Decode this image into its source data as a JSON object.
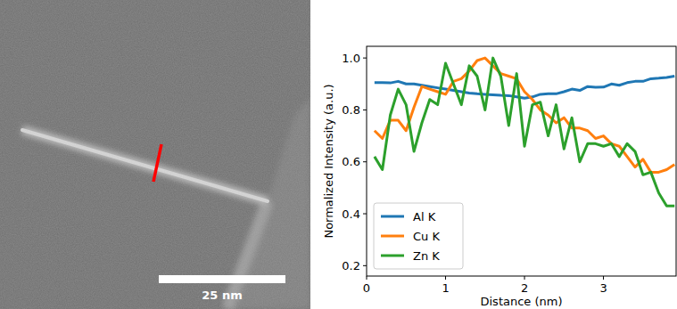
{
  "chart_data": {
    "type": "line",
    "x_label": "Distance (nm)",
    "y_label": "Normalized Intensity (a.u.)",
    "x": [
      0.1,
      0.2,
      0.3,
      0.4,
      0.5,
      0.6,
      0.7,
      0.8,
      0.9,
      1.0,
      1.1,
      1.2,
      1.3,
      1.4,
      1.5,
      1.6,
      1.7,
      1.8,
      1.9,
      2.0,
      2.1,
      2.2,
      2.3,
      2.4,
      2.5,
      2.6,
      2.7,
      2.8,
      2.9,
      3.0,
      3.1,
      3.2,
      3.3,
      3.4,
      3.5,
      3.6,
      3.7,
      3.8,
      3.9
    ],
    "series": [
      {
        "name": "Al K",
        "color": "#1f77b4",
        "values": [
          0.905,
          0.905,
          0.904,
          0.91,
          0.9,
          0.9,
          0.895,
          0.89,
          0.885,
          0.88,
          0.875,
          0.87,
          0.865,
          0.862,
          0.86,
          0.858,
          0.856,
          0.855,
          0.85,
          0.845,
          0.85,
          0.86,
          0.862,
          0.862,
          0.87,
          0.88,
          0.875,
          0.89,
          0.887,
          0.888,
          0.9,
          0.895,
          0.905,
          0.91,
          0.91,
          0.92,
          0.922,
          0.925,
          0.93
        ]
      },
      {
        "name": "Cu K",
        "color": "#ff7f0e",
        "values": [
          0.72,
          0.69,
          0.76,
          0.76,
          0.72,
          0.81,
          0.89,
          0.88,
          0.87,
          0.86,
          0.91,
          0.92,
          0.95,
          0.99,
          1.0,
          0.97,
          0.94,
          0.93,
          0.92,
          0.87,
          0.84,
          0.8,
          0.78,
          0.75,
          0.77,
          0.73,
          0.73,
          0.72,
          0.69,
          0.7,
          0.67,
          0.66,
          0.62,
          0.58,
          0.61,
          0.56,
          0.56,
          0.57,
          0.59
        ]
      },
      {
        "name": "Zn K",
        "color": "#2ca02c",
        "values": [
          0.62,
          0.57,
          0.78,
          0.88,
          0.82,
          0.64,
          0.75,
          0.84,
          0.82,
          0.98,
          0.9,
          0.82,
          0.97,
          0.93,
          0.8,
          1.0,
          0.93,
          0.74,
          0.94,
          0.66,
          0.82,
          0.83,
          0.7,
          0.82,
          0.65,
          0.77,
          0.6,
          0.67,
          0.67,
          0.66,
          0.67,
          0.62,
          0.67,
          0.64,
          0.55,
          0.56,
          0.48,
          0.43,
          0.43
        ]
      }
    ],
    "xlim": [
      0,
      3.92
    ],
    "xticks": [
      0,
      1,
      2,
      3
    ],
    "ylim": [
      0.16,
      1.045
    ],
    "yticks": [
      0.2,
      0.4,
      0.6,
      0.8,
      {
        "value": 1,
        "label": "1.0"
      }
    ],
    "legend": "lower left",
    "grid": false
  },
  "micrograph": {
    "scale_bar_label": "25 nm"
  }
}
